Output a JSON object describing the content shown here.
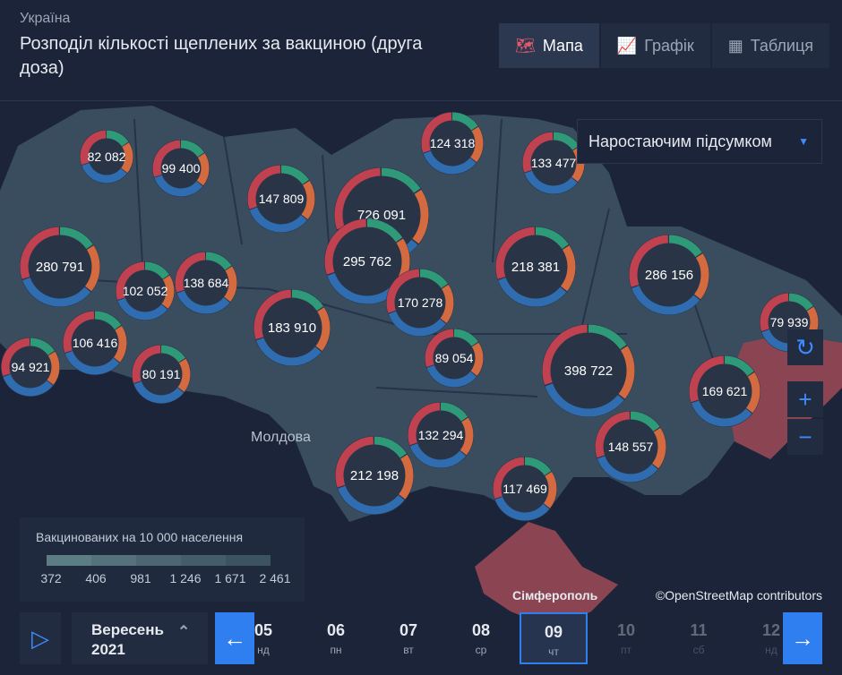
{
  "header": {
    "breadcrumb": "Україна",
    "title": "Розподіл кількості щеплених за вакциною (друга доза)"
  },
  "tabs": [
    "Мапа",
    "Графік",
    "Таблиця"
  ],
  "dropdown": "Наростаючим підсумком",
  "map_labels": [
    "Молдова",
    "Сімферополь"
  ],
  "markers": [
    "82 082",
    "99 400",
    "124 318",
    "133 477",
    "147 809",
    "726 091",
    "280 791",
    "102 052",
    "138 684",
    "295 762",
    "218 381",
    "286 156",
    "170 278",
    "183 910",
    "106 416",
    "94 921",
    "80 191",
    "89 054",
    "398 722",
    "169 621",
    "79 939",
    "132 294",
    "148 557",
    "212 198",
    "117 469"
  ],
  "legend": {
    "title": "Вакцинованих на 10 000 населення",
    "ticks": [
      "372",
      "406",
      "981",
      "1 246",
      "1 671",
      "2 461"
    ]
  },
  "attribution": "©OpenStreetMap contributors",
  "timeline": {
    "month": "Вересень",
    "year": "2021",
    "days": [
      {
        "num": "05",
        "dow": "нд"
      },
      {
        "num": "06",
        "dow": "пн"
      },
      {
        "num": "07",
        "dow": "вт"
      },
      {
        "num": "08",
        "dow": "ср"
      },
      {
        "num": "09",
        "dow": "чт"
      },
      {
        "num": "10",
        "dow": "пт"
      },
      {
        "num": "11",
        "dow": "сб"
      },
      {
        "num": "12",
        "dow": "нд"
      }
    ]
  }
}
